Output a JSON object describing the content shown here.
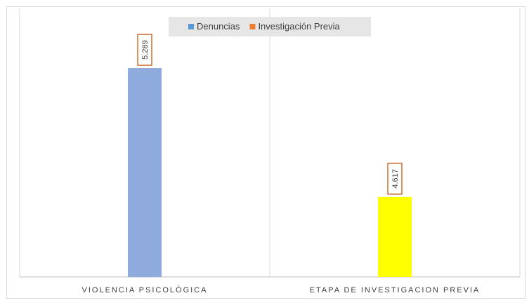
{
  "chart_data": {
    "type": "bar",
    "categories": [
      "VIOLENCIA PSICOLÓGICA",
      "ETAPA DE INVESTIGACION PREVIA"
    ],
    "series": [
      {
        "name": "Denuncias",
        "color": "#5b9bd5",
        "bar_color": "#8faadc",
        "values": [
          5289,
          null
        ],
        "value_labels": [
          "5.289",
          null
        ]
      },
      {
        "name": "Investigación Previa",
        "color": "#ed7d31",
        "bar_color": "#ffff00",
        "values": [
          null,
          4617
        ],
        "value_labels": [
          null,
          "4.617"
        ]
      }
    ],
    "ylim": [
      4200,
      5600
    ],
    "legend": "top"
  }
}
